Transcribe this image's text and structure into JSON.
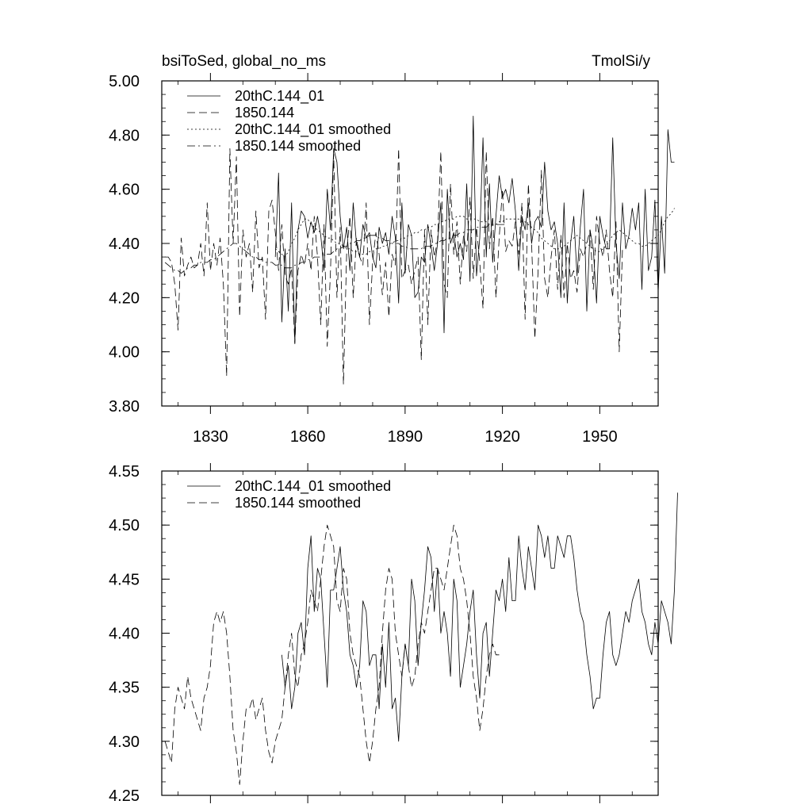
{
  "chart_data": [
    {
      "type": "line",
      "title_left": "bsiToSed, global_no_ms",
      "title_right": "TmolSi/y",
      "xlim": [
        1815,
        1968
      ],
      "ylim": [
        3.8,
        5.0
      ],
      "yticks": [
        "3.80",
        "4.00",
        "4.20",
        "4.40",
        "4.60",
        "4.80",
        "5.00"
      ],
      "xticks": [
        "1830",
        "1860",
        "1890",
        "1920",
        "1950"
      ],
      "xtick_values": [
        1830,
        1860,
        1890,
        1920,
        1950
      ],
      "legend_position": "top-left",
      "series": [
        {
          "name": "20thC.144_01",
          "style": "solid",
          "x_start": 1850,
          "x_step": 1,
          "values": [
            4.35,
            4.66,
            4.11,
            4.38,
            4.15,
            4.55,
            4.03,
            4.45,
            4.52,
            4.5,
            4.42,
            4.48,
            4.44,
            4.5,
            4.43,
            4.3,
            4.6,
            4.45,
            4.75,
            4.7,
            4.5,
            4.38,
            4.46,
            4.3,
            4.55,
            4.4,
            4.35,
            4.47,
            4.42,
            4.44,
            4.35,
            4.31,
            4.46,
            4.4,
            4.44,
            4.36,
            4.5,
            4.42,
            4.18,
            4.55,
            4.29,
            4.47,
            4.43,
            4.2,
            4.22,
            4.35,
            4.33,
            4.47,
            4.39,
            4.3,
            4.4,
            4.55,
            4.07,
            4.6,
            4.4,
            4.44,
            4.35,
            4.4,
            4.34,
            4.62,
            4.26,
            4.87,
            4.28,
            4.42,
            4.79,
            4.35,
            4.62,
            4.33,
            4.5,
            4.65,
            4.57,
            4.6,
            4.55,
            4.64,
            4.52,
            4.3,
            4.5,
            4.45,
            4.55,
            4.4,
            4.48,
            4.5,
            4.46,
            4.7,
            4.52,
            4.45,
            4.48,
            4.4,
            4.2,
            4.55,
            4.18,
            4.4,
            4.5,
            4.28,
            4.46,
            4.6,
            4.15,
            4.45,
            4.38,
            4.18,
            4.5,
            4.43,
            4.38,
            4.38,
            4.79,
            4.4,
            4.27,
            4.55,
            4.38,
            4.43,
            4.53,
            4.45,
            4.55,
            4.23,
            4.6,
            4.3,
            4.35,
            4.56,
            4.22,
            4.5,
            4.29,
            4.82,
            4.7,
            4.7
          ],
          "color": "#000000"
        },
        {
          "name": "1850.144",
          "style": "dashed",
          "x_start": 1816,
          "x_step": 1,
          "values": [
            4.35,
            4.35,
            4.33,
            4.25,
            4.08,
            4.42,
            4.28,
            4.32,
            4.35,
            4.31,
            4.32,
            4.4,
            4.28,
            4.55,
            4.3,
            4.4,
            4.32,
            4.42,
            4.25,
            3.91,
            4.75,
            4.4,
            4.72,
            4.13,
            4.45,
            4.35,
            4.4,
            4.22,
            4.52,
            4.31,
            4.35,
            4.12,
            4.52,
            4.56,
            4.44,
            4.3,
            4.47,
            4.28,
            4.25,
            4.31,
            4.03,
            4.3,
            4.36,
            4.32,
            4.4,
            4.3,
            4.5,
            4.35,
            4.1,
            4.47,
            4.02,
            4.3,
            4.73,
            4.2,
            4.46,
            3.88,
            4.37,
            4.5,
            4.2,
            4.42,
            4.35,
            4.32,
            4.55,
            4.1,
            4.33,
            4.44,
            4.36,
            4.21,
            4.33,
            4.13,
            4.36,
            4.32,
            4.75,
            4.27,
            4.3,
            4.32,
            4.25,
            4.3,
            4.35,
            3.97,
            4.45,
            4.1,
            4.45,
            4.35,
            4.41,
            4.74,
            4.25,
            4.2,
            4.62,
            4.36,
            4.48,
            4.25,
            4.43,
            4.37,
            4.57,
            4.27,
            4.46,
            4.33,
            4.16,
            4.74,
            4.38,
            4.5,
            4.2,
            4.42,
            4.6,
            4.37,
            4.41,
            4.39,
            4.48,
            4.36,
            4.55,
            4.12,
            4.62,
            4.4,
            4.05,
            4.3,
            4.67,
            4.27,
            4.2,
            4.35,
            4.45,
            4.23,
            4.43,
            4.2,
            4.4,
            4.27,
            4.3,
            4.22,
            4.38,
            4.35,
            4.4,
            4.45,
            4.23,
            4.5,
            4.4,
            4.35,
            4.45,
            4.3,
            4.2,
            4.48,
            4.0,
            4.38
          ],
          "color": "#000000"
        },
        {
          "name": "20thC.144_01 smoothed",
          "style": "dotted",
          "x_start": 1850,
          "x_step": 1,
          "values": [
            4.38,
            4.37,
            4.36,
            4.35,
            4.37,
            4.4,
            4.42,
            4.45,
            4.47,
            4.49,
            4.49,
            4.47,
            4.46,
            4.45,
            4.44,
            4.43,
            4.42,
            4.42,
            4.41,
            4.4,
            4.4,
            4.39,
            4.38,
            4.38,
            4.37,
            4.37,
            4.36,
            4.36,
            4.36,
            4.37,
            4.37,
            4.38,
            4.38,
            4.39,
            4.39,
            4.4,
            4.4,
            4.41,
            4.41,
            4.42,
            4.42,
            4.43,
            4.43,
            4.44,
            4.44,
            4.45,
            4.45,
            4.46,
            4.46,
            4.47,
            4.47,
            4.48,
            4.48,
            4.49,
            4.49,
            4.49,
            4.5,
            4.5,
            4.5,
            4.49,
            4.49,
            4.49,
            4.49,
            4.48,
            4.48,
            4.48,
            4.47,
            4.47,
            4.47,
            4.48,
            4.48,
            4.49,
            4.49,
            4.49,
            4.49,
            4.49,
            4.48,
            4.48,
            4.47,
            4.46,
            4.45,
            4.44,
            4.42,
            4.41,
            4.4,
            4.39,
            4.38,
            4.38,
            4.38,
            4.39,
            4.4,
            4.41,
            4.42,
            4.43,
            4.42,
            4.41,
            4.4,
            4.39,
            4.38,
            4.37,
            4.37,
            4.38,
            4.39,
            4.41,
            4.43,
            4.44,
            4.45,
            4.44,
            4.43,
            4.42,
            4.41,
            4.4,
            4.4,
            4.39,
            4.39,
            4.4,
            4.41,
            4.42,
            4.43,
            4.45,
            4.48,
            4.5,
            4.51,
            4.53
          ],
          "color": "#000000"
        },
        {
          "name": "1850.144 smoothed",
          "style": "dashdot",
          "x_start": 1816,
          "x_step": 1,
          "values": [
            4.33,
            4.32,
            4.31,
            4.3,
            4.3,
            4.29,
            4.3,
            4.31,
            4.31,
            4.32,
            4.32,
            4.33,
            4.33,
            4.33,
            4.34,
            4.34,
            4.35,
            4.36,
            4.37,
            4.38,
            4.39,
            4.4,
            4.4,
            4.39,
            4.38,
            4.37,
            4.36,
            4.35,
            4.35,
            4.34,
            4.34,
            4.33,
            4.33,
            4.33,
            4.32,
            4.32,
            4.32,
            4.31,
            4.31,
            4.31,
            4.32,
            4.32,
            4.33,
            4.33,
            4.34,
            4.34,
            4.35,
            4.35,
            4.35,
            4.36,
            4.36,
            4.36,
            4.37,
            4.38,
            4.38,
            4.39,
            4.39,
            4.4,
            4.4,
            4.41,
            4.41,
            4.42,
            4.42,
            4.43,
            4.43,
            4.43,
            4.42,
            4.42,
            4.41,
            4.41,
            4.4,
            4.4,
            4.4,
            4.39,
            4.39,
            4.38,
            4.38,
            4.38,
            4.38,
            4.38,
            4.39,
            4.39,
            4.39,
            4.4,
            4.4,
            4.41,
            4.41,
            4.42,
            4.42,
            4.43,
            4.43,
            4.44,
            4.44,
            4.45,
            4.45,
            4.45,
            4.46,
            4.46,
            4.46,
            4.46,
            4.47,
            4.47,
            4.47,
            4.47,
            4.47,
            4.47
          ],
          "color": "#000000"
        }
      ]
    },
    {
      "type": "line",
      "xlim": [
        1815,
        1968
      ],
      "ylim": [
        4.25,
        4.55
      ],
      "yticks": [
        "4.25",
        "4.30",
        "4.35",
        "4.40",
        "4.45",
        "4.50",
        "4.55"
      ],
      "xtick_values": [
        1830,
        1860,
        1890,
        1920,
        1950
      ],
      "legend_position": "top-left",
      "series": [
        {
          "name": "20thC.144_01 smoothed",
          "style": "solid",
          "x_start": 1852,
          "x_step": 1,
          "values": [
            4.38,
            4.35,
            4.37,
            4.33,
            4.35,
            4.4,
            4.41,
            4.38,
            4.46,
            4.49,
            4.42,
            4.46,
            4.45,
            4.4,
            4.35,
            4.44,
            4.44,
            4.46,
            4.48,
            4.44,
            4.42,
            4.38,
            4.37,
            4.35,
            4.37,
            4.43,
            4.42,
            4.37,
            4.38,
            4.38,
            4.33,
            4.39,
            4.35,
            4.41,
            4.33,
            4.34,
            4.3,
            4.36,
            4.39,
            4.37,
            4.45,
            4.43,
            4.37,
            4.41,
            4.44,
            4.48,
            4.47,
            4.42,
            4.46,
            4.4,
            4.42,
            4.4,
            4.36,
            4.45,
            4.43,
            4.35,
            4.37,
            4.39,
            4.42,
            4.44,
            4.38,
            4.34,
            4.4,
            4.41,
            4.36,
            4.4,
            4.44,
            4.43,
            4.45,
            4.42,
            4.47,
            4.43,
            4.43,
            4.49,
            4.46,
            4.44,
            4.48,
            4.46,
            4.44,
            4.5,
            4.49,
            4.47,
            4.49,
            4.46,
            4.46,
            4.49,
            4.48,
            4.47,
            4.49,
            4.49,
            4.47,
            4.44,
            4.42,
            4.41,
            4.38,
            4.36,
            4.33,
            4.34,
            4.34,
            4.38,
            4.41,
            4.42,
            4.38,
            4.37,
            4.38,
            4.4,
            4.42,
            4.41,
            4.43,
            4.44,
            4.45,
            4.42,
            4.41,
            4.39,
            4.38,
            4.41,
            4.39,
            4.43,
            4.42,
            4.41,
            4.39,
            4.44,
            4.53
          ]
        },
        {
          "name": "1850.144 smoothed",
          "style": "dashed",
          "x_start": 1816,
          "x_step": 1,
          "values": [
            4.3,
            4.29,
            4.28,
            4.33,
            4.35,
            4.34,
            4.33,
            4.36,
            4.34,
            4.33,
            4.32,
            4.31,
            4.34,
            4.35,
            4.37,
            4.41,
            4.42,
            4.41,
            4.42,
            4.4,
            4.36,
            4.31,
            4.29,
            4.26,
            4.3,
            4.33,
            4.33,
            4.34,
            4.32,
            4.33,
            4.34,
            4.31,
            4.29,
            4.28,
            4.3,
            4.31,
            4.32,
            4.35,
            4.38,
            4.4,
            4.36,
            4.35,
            4.38,
            4.39,
            4.41,
            4.44,
            4.43,
            4.42,
            4.45,
            4.48,
            4.5,
            4.49,
            4.48,
            4.43,
            4.42,
            4.46,
            4.45,
            4.4,
            4.38,
            4.37,
            4.36,
            4.33,
            4.3,
            4.28,
            4.3,
            4.33,
            4.35,
            4.4,
            4.44,
            4.46,
            4.45,
            4.4,
            4.38,
            4.36,
            4.39,
            4.37,
            4.35,
            4.36,
            4.39,
            4.41,
            4.4,
            4.42,
            4.44,
            4.46,
            4.46,
            4.45,
            4.44,
            4.46,
            4.48,
            4.5,
            4.49,
            4.46,
            4.45,
            4.43,
            4.4,
            4.36,
            4.34,
            4.31,
            4.33,
            4.36,
            4.38,
            4.39,
            4.38,
            4.38
          ]
        }
      ]
    }
  ]
}
